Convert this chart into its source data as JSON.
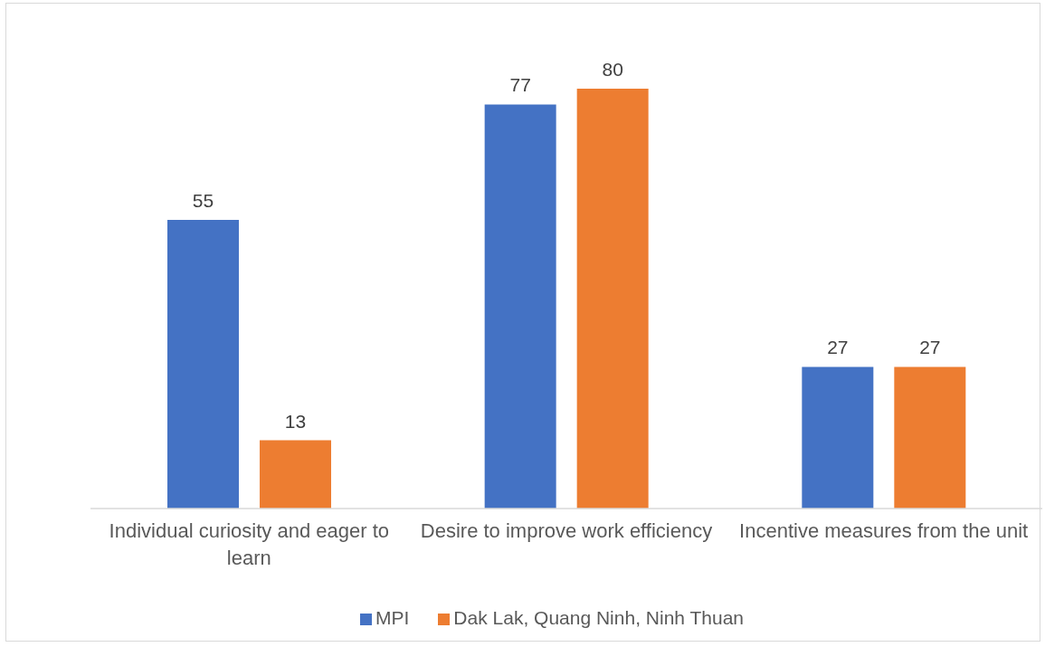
{
  "chart_data": {
    "type": "bar",
    "categories": [
      "Individual curiosity and eager to learn",
      "Desire to improve work efficiency",
      "Incentive measures from the unit"
    ],
    "series": [
      {
        "name": "MPI",
        "color": "#4472c4",
        "values": [
          55,
          77,
          27
        ]
      },
      {
        "name": "Dak Lak, Quang Ninh, Ninh Thuan",
        "color": "#ed7d31",
        "values": [
          13,
          80,
          27
        ]
      }
    ],
    "data_labels": true,
    "legend": "bottom"
  }
}
